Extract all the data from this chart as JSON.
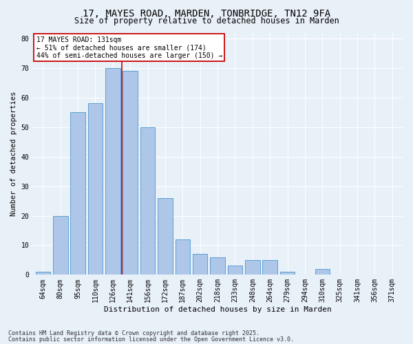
{
  "title_line1": "17, MAYES ROAD, MARDEN, TONBRIDGE, TN12 9FA",
  "title_line2": "Size of property relative to detached houses in Marden",
  "xlabel": "Distribution of detached houses by size in Marden",
  "ylabel": "Number of detached properties",
  "categories": [
    "64sqm",
    "80sqm",
    "95sqm",
    "110sqm",
    "126sqm",
    "141sqm",
    "156sqm",
    "172sqm",
    "187sqm",
    "202sqm",
    "218sqm",
    "233sqm",
    "248sqm",
    "264sqm",
    "279sqm",
    "294sqm",
    "310sqm",
    "325sqm",
    "341sqm",
    "356sqm",
    "371sqm"
  ],
  "values": [
    1,
    20,
    55,
    58,
    70,
    69,
    50,
    26,
    12,
    7,
    6,
    3,
    5,
    5,
    1,
    0,
    2,
    0,
    0,
    0,
    0
  ],
  "bar_color": "#aec6e8",
  "bar_edge_color": "#5a9fd4",
  "vline_x": 4.5,
  "vline_color": "#cc0000",
  "annotation_text": "17 MAYES ROAD: 131sqm\n← 51% of detached houses are smaller (174)\n44% of semi-detached houses are larger (150) →",
  "annotation_box_color": "#ffffff",
  "annotation_box_edge_color": "#cc0000",
  "ylim": [
    0,
    82
  ],
  "yticks": [
    0,
    10,
    20,
    30,
    40,
    50,
    60,
    70,
    80
  ],
  "footer_line1": "Contains HM Land Registry data © Crown copyright and database right 2025.",
  "footer_line2": "Contains public sector information licensed under the Open Government Licence v3.0.",
  "bg_color": "#e8f0f8",
  "plot_bg_color": "#e8f0f8",
  "grid_color": "#ffffff",
  "title_fontsize": 10,
  "subtitle_fontsize": 8.5,
  "xlabel_fontsize": 8,
  "ylabel_fontsize": 7.5,
  "tick_fontsize": 7,
  "annot_fontsize": 7,
  "footer_fontsize": 6
}
